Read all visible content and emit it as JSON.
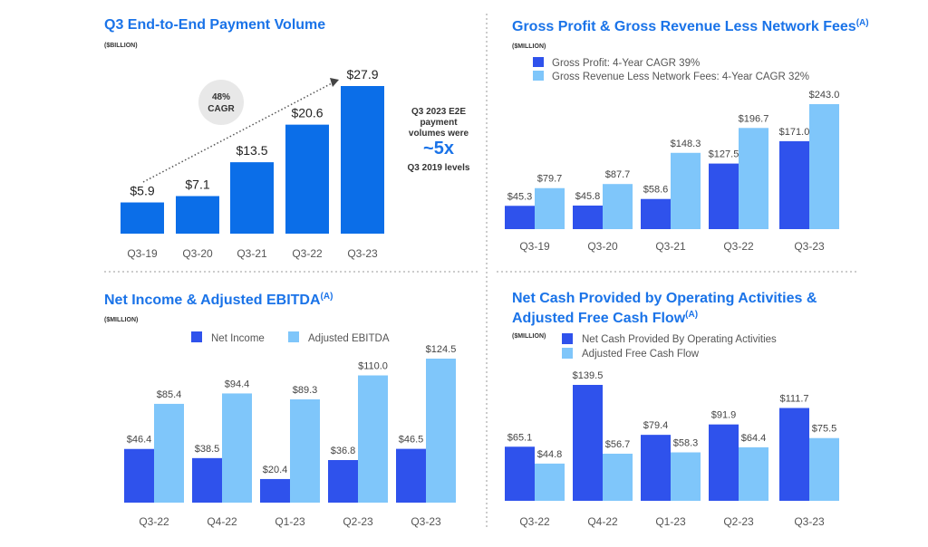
{
  "colors": {
    "e2e": "#0b6ee8",
    "dark": "#2f52ec",
    "light": "#7fc6fa",
    "title": "#1a73e8",
    "cagr_bubble": "#e8e8e8"
  },
  "chart_data": [
    {
      "type": "bar",
      "title": "Q3 End-to-End Payment Volume",
      "unit": "($BILLION)",
      "categories": [
        "Q3-19",
        "Q3-20",
        "Q3-21",
        "Q3-22",
        "Q3-23"
      ],
      "values": [
        5.9,
        7.1,
        13.5,
        20.6,
        27.9
      ],
      "data_labels": [
        "$5.9",
        "$7.1",
        "$13.5",
        "$20.6",
        "$27.9"
      ],
      "annotation": {
        "cagr_line1": "48%",
        "cagr_line2": "CAGR"
      },
      "callout": {
        "line1": "Q3 2023 E2E",
        "line2": "payment",
        "line3": "volumes were",
        "highlight": "~5x",
        "line4": "Q3 2019 levels"
      }
    },
    {
      "type": "bar",
      "title": "Gross Profit & Gross Revenue Less Network Fees",
      "title_sup": "(A)",
      "unit": "($MILLION)",
      "legend": "top-left",
      "categories": [
        "Q3-19",
        "Q3-20",
        "Q3-21",
        "Q3-22",
        "Q3-23"
      ],
      "series": [
        {
          "name": "Gross Profit: 4-Year CAGR 39%",
          "values": [
            45.3,
            45.8,
            58.6,
            127.5,
            171.0
          ],
          "data_labels": [
            "$45.3",
            "$45.8",
            "$58.6",
            "$127.5",
            "$171.0"
          ]
        },
        {
          "name": "Gross Revenue Less Network Fees: 4-Year CAGR 32%",
          "values": [
            79.7,
            87.7,
            148.3,
            196.7,
            243.0
          ],
          "data_labels": [
            "$79.7",
            "$87.7",
            "$148.3",
            "$196.7",
            "$243.0"
          ]
        }
      ]
    },
    {
      "type": "bar",
      "title": "Net Income & Adjusted EBITDA",
      "title_sup": "(A)",
      "unit": "($MILLION)",
      "legend": "top",
      "categories": [
        "Q3-22",
        "Q4-22",
        "Q1-23",
        "Q2-23",
        "Q3-23"
      ],
      "series": [
        {
          "name": "Net Income",
          "values": [
            46.4,
            38.5,
            20.4,
            36.8,
            46.5
          ],
          "data_labels": [
            "$46.4",
            "$38.5",
            "$20.4",
            "$36.8",
            "$46.5"
          ]
        },
        {
          "name": "Adjusted EBITDA",
          "values": [
            85.4,
            94.4,
            89.3,
            110.0,
            124.5
          ],
          "data_labels": [
            "$85.4",
            "$94.4",
            "$89.3",
            "$110.0",
            "$124.5"
          ]
        }
      ]
    },
    {
      "type": "bar",
      "title": "Net Cash Provided by Operating Activities &",
      "title_line2": "Adjusted Free Cash Flow",
      "title_sup": "(A)",
      "unit": "($MILLION)",
      "legend": "top",
      "categories": [
        "Q3-22",
        "Q4-22",
        "Q1-23",
        "Q2-23",
        "Q3-23"
      ],
      "series": [
        {
          "name": "Net Cash Provided By Operating Activities",
          "values": [
            65.1,
            139.5,
            79.4,
            91.9,
            111.7
          ],
          "data_labels": [
            "$65.1",
            "$139.5",
            "$79.4",
            "$91.9",
            "$111.7"
          ]
        },
        {
          "name": "Adjusted Free Cash Flow",
          "values": [
            44.8,
            56.7,
            58.3,
            64.4,
            75.5
          ],
          "data_labels": [
            "$44.8",
            "$56.7",
            "$58.3",
            "$64.4",
            "$75.5"
          ]
        }
      ]
    }
  ]
}
